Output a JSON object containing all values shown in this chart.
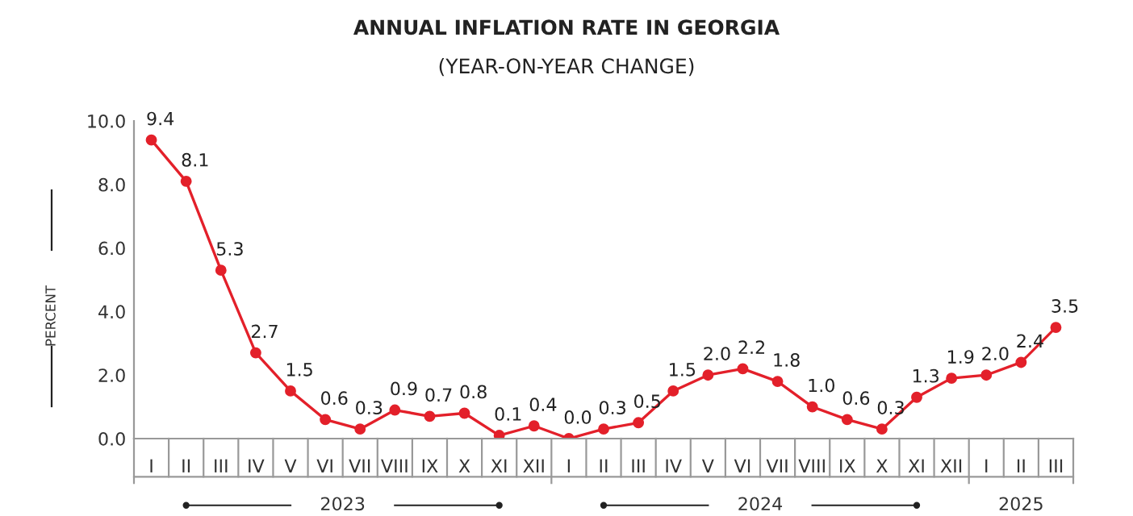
{
  "chart_data": {
    "type": "line",
    "title": "ANNUAL INFLATION RATE IN GEORGIA",
    "subtitle": "(YEAR-ON-YEAR CHANGE)",
    "ylabel": "PERCENT",
    "categories": [
      "I",
      "II",
      "III",
      "IV",
      "V",
      "VI",
      "VII",
      "VIII",
      "IX",
      "X",
      "XI",
      "XII",
      "I",
      "II",
      "III",
      "IV",
      "V",
      "VI",
      "VII",
      "VIII",
      "IX",
      "X",
      "XI",
      "XII",
      "I",
      "II",
      "III"
    ],
    "series": [
      {
        "color": "#e3202a",
        "values": [
          9.4,
          8.1,
          5.3,
          2.7,
          1.5,
          0.6,
          0.3,
          0.9,
          0.7,
          0.8,
          0.1,
          0.4,
          0.0,
          0.3,
          0.5,
          1.5,
          2.0,
          2.2,
          1.8,
          1.0,
          0.6,
          0.3,
          1.3,
          1.9,
          2.0,
          2.4,
          3.5
        ],
        "value_labels": [
          "9.4",
          "8.1",
          "5.3",
          "2.7",
          "1.5",
          "0.6",
          "0.3",
          "0.9",
          "0.7",
          "0.8",
          "0.1",
          "0.4",
          "0.0",
          "0.3",
          "0.5",
          "1.5",
          "2.0",
          "2.2",
          "1.8",
          "1.0",
          "0.6",
          "0.3",
          "1.3",
          "1.9",
          "2.0",
          "2.4",
          "3.5"
        ]
      }
    ],
    "annotations": [
      "2023",
      "2024",
      "2025"
    ],
    "ylim": [
      0,
      10
    ],
    "yticks": [
      {
        "value": 0,
        "label": "0.0"
      },
      {
        "value": 2,
        "label": "2.0"
      },
      {
        "value": 4,
        "label": "4.0"
      },
      {
        "value": 6,
        "label": "6.0"
      },
      {
        "value": 8,
        "label": "8.0"
      },
      {
        "value": 10,
        "label": "10.0"
      }
    ],
    "marker": "circle",
    "line_style": "solid",
    "grid": false,
    "legend": false
  }
}
